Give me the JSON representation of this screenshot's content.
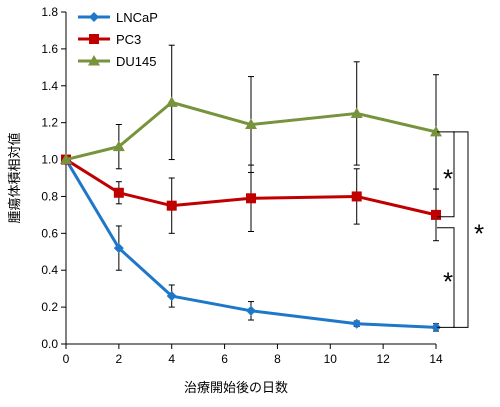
{
  "chart_data": {
    "type": "line",
    "xlabel": "治療開始後の日数",
    "ylabel": "腫瘍体積相対値",
    "xlim": [
      0,
      14
    ],
    "ylim": [
      0,
      1.8
    ],
    "xticks": [
      0,
      2,
      4,
      6,
      8,
      10,
      12,
      14
    ],
    "yticks": [
      0.0,
      0.2,
      0.4,
      0.6,
      0.8,
      1.0,
      1.2,
      1.4,
      1.6,
      1.8
    ],
    "grid": false,
    "legend_position": "top-left",
    "x": [
      0,
      2,
      4,
      7,
      11,
      14
    ],
    "series": [
      {
        "name": "LNCaP",
        "color": "#1F77C8",
        "marker": "diamond",
        "values": [
          1.0,
          0.52,
          0.26,
          0.18,
          0.11,
          0.09
        ],
        "error": [
          0,
          0.12,
          0.06,
          0.05,
          0.015,
          0.02
        ]
      },
      {
        "name": "PC3",
        "color": "#C00000",
        "marker": "square",
        "values": [
          1.0,
          0.82,
          0.75,
          0.79,
          0.8,
          0.7
        ],
        "error": [
          0,
          0.06,
          0.15,
          0.18,
          0.15,
          0.14
        ]
      },
      {
        "name": "DU145",
        "color": "#77933C",
        "marker": "triangle",
        "values": [
          1.0,
          1.07,
          1.31,
          1.19,
          1.25,
          1.15
        ],
        "error": [
          0,
          0.12,
          0.31,
          0.26,
          0.28,
          0.31
        ]
      }
    ],
    "annotations": [
      {
        "label": "*",
        "between": [
          "DU145",
          "PC3"
        ],
        "y_range": [
          0.69,
          1.15
        ]
      },
      {
        "label": "*",
        "between": [
          "PC3",
          "LNCaP"
        ],
        "y_range": [
          0.09,
          0.63
        ]
      },
      {
        "label": "*",
        "between": [
          "DU145",
          "LNCaP"
        ],
        "y_range": [
          0.09,
          1.15
        ]
      }
    ]
  }
}
